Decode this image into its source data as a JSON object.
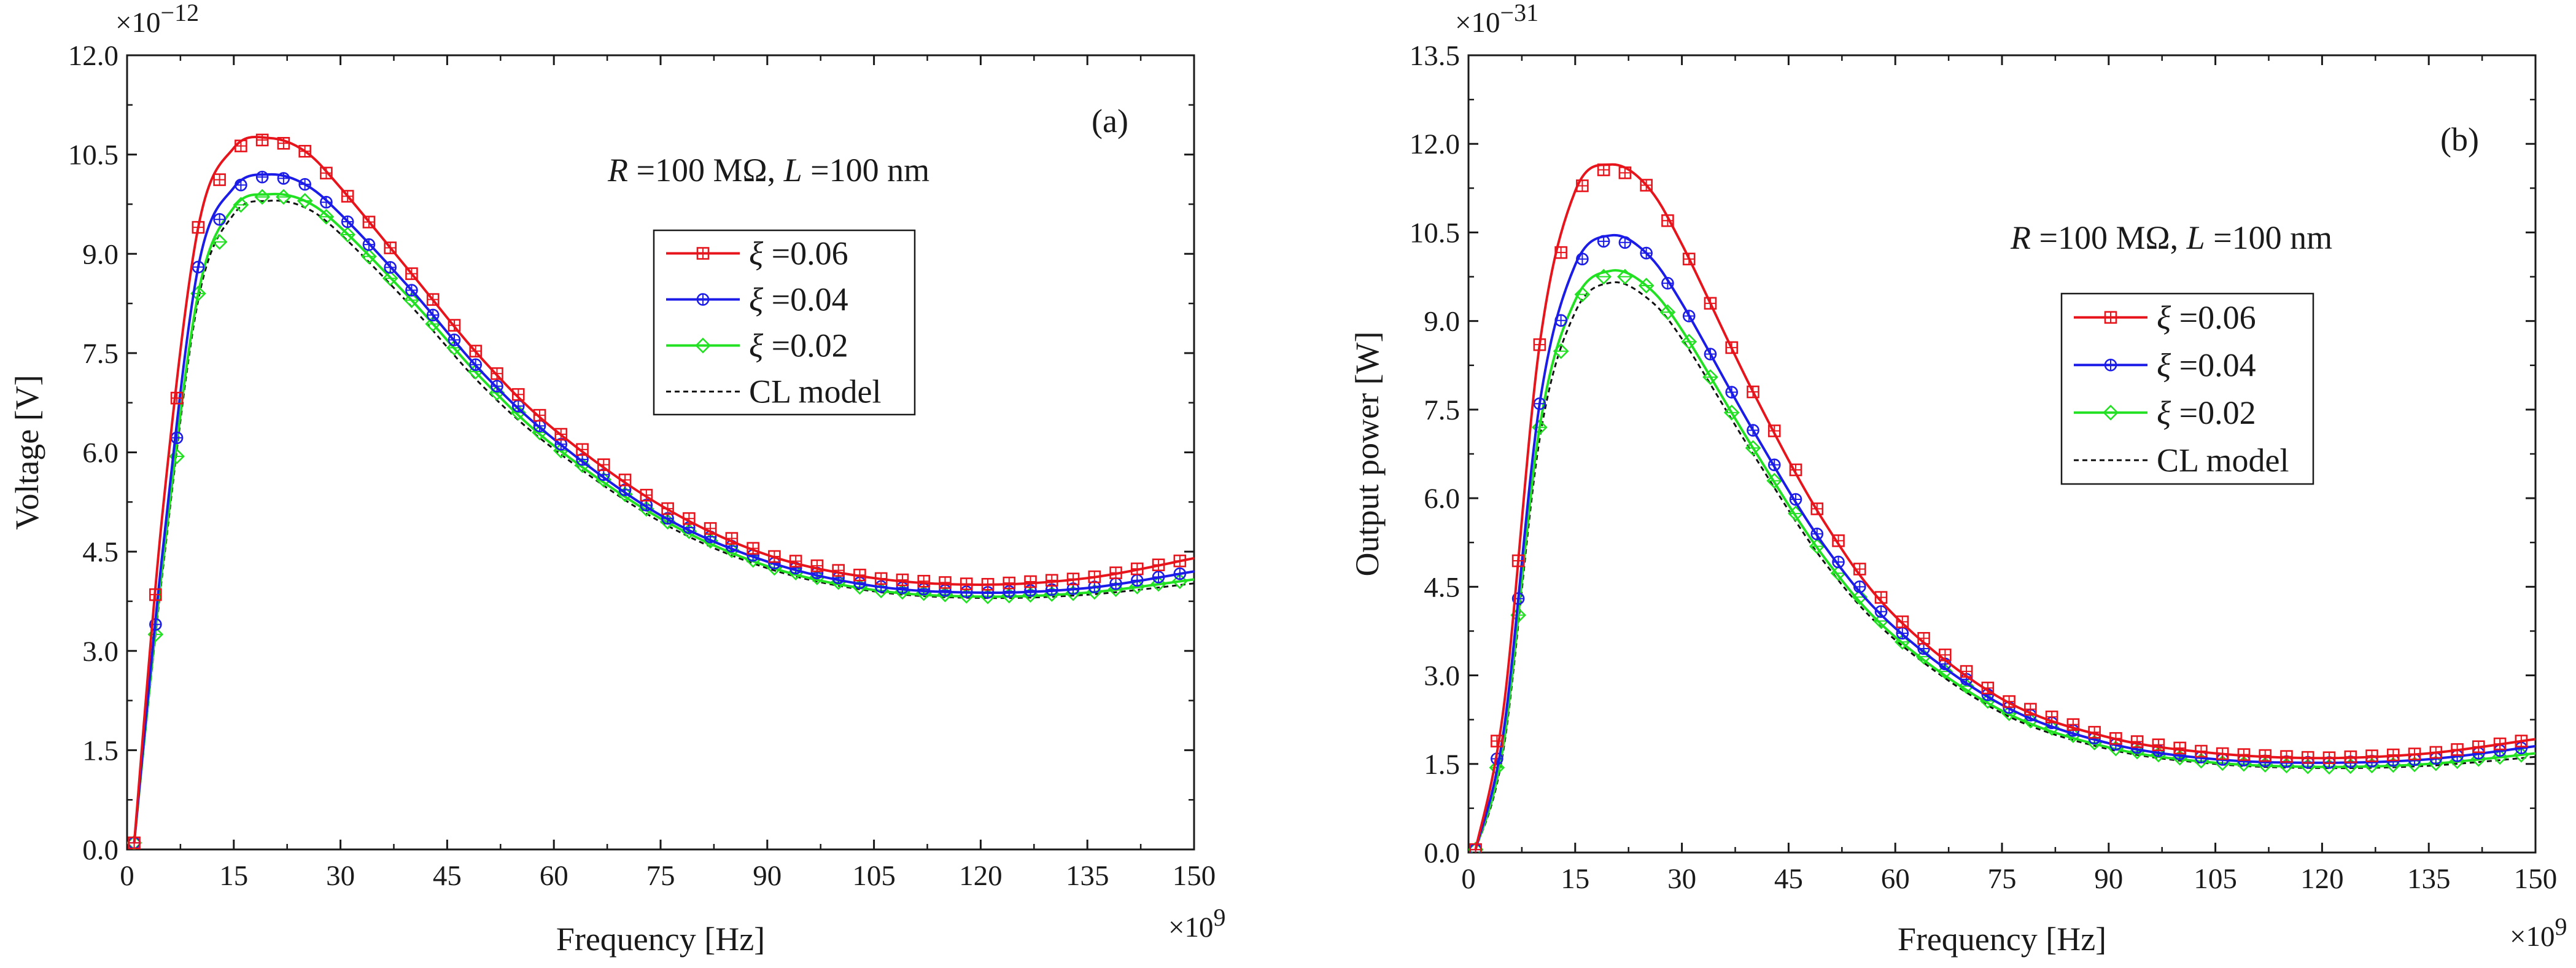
{
  "chart_data": [
    {
      "id": "a",
      "type": "line",
      "panel_label": "(a)",
      "annotation": {
        "R_var": "R",
        "R_text": " =100 MΩ, ",
        "L_var": "L",
        "L_text": " =100 nm"
      },
      "xlabel": "Frequency [Hz]",
      "ylabel": "Voltage [V]",
      "x_multiplier": "×10",
      "x_multiplier_exp": "9",
      "y_multiplier": "×10",
      "y_multiplier_exp": "−12",
      "xlim": [
        0,
        150
      ],
      "ylim": [
        0,
        12
      ],
      "x_ticks": [
        0,
        15,
        30,
        45,
        60,
        75,
        90,
        105,
        120,
        135,
        150
      ],
      "x_tick_labels": [
        "0",
        "15",
        "30",
        "45",
        "60",
        "75",
        "90",
        "105",
        "120",
        "135",
        "150"
      ],
      "y_ticks": [
        0,
        1.5,
        3,
        4.5,
        6,
        7.5,
        9,
        10.5,
        12
      ],
      "y_tick_labels": [
        "0.0",
        "1.5",
        "3.0",
        "4.5",
        "6.0",
        "7.5",
        "9.0",
        "10.5",
        "12.0"
      ],
      "series": [
        {
          "name_var": "ξ",
          "name_text": " =0.06",
          "color": "#e8141c",
          "marker": "square",
          "x": [
            1,
            5,
            10,
            15,
            20,
            25,
            30,
            40,
            50,
            60,
            75,
            90,
            105,
            120,
            135,
            150
          ],
          "y": [
            0.1,
            5.1,
            9.4,
            10.6,
            10.75,
            10.55,
            10.0,
            8.7,
            7.4,
            6.35,
            5.2,
            4.45,
            4.1,
            4.0,
            4.1,
            4.4
          ]
        },
        {
          "name_var": "ξ",
          "name_text": " =0.04",
          "color": "#1c1ce8",
          "marker": "circle",
          "x": [
            1,
            5,
            10,
            15,
            20,
            25,
            30,
            40,
            50,
            60,
            75,
            90,
            105,
            120,
            135,
            150
          ],
          "y": [
            0.1,
            4.5,
            8.8,
            10.0,
            10.2,
            10.05,
            9.6,
            8.45,
            7.2,
            6.2,
            5.05,
            4.35,
            3.98,
            3.88,
            3.95,
            4.2
          ]
        },
        {
          "name_var": "ξ",
          "name_text": " =0.02",
          "color": "#22e022",
          "marker": "diamond",
          "x": [
            1,
            5,
            10,
            15,
            20,
            25,
            30,
            40,
            50,
            60,
            75,
            90,
            105,
            120,
            135,
            150
          ],
          "y": [
            0.1,
            4.3,
            8.4,
            9.7,
            9.9,
            9.8,
            9.4,
            8.3,
            7.1,
            6.1,
            5.0,
            4.28,
            3.92,
            3.82,
            3.88,
            4.08
          ]
        },
        {
          "name_var": "",
          "name_text": "CL model",
          "color": "#111111",
          "marker": "none",
          "dashed": true,
          "x": [
            1,
            5,
            10,
            15,
            20,
            25,
            30,
            40,
            50,
            60,
            75,
            90,
            105,
            120,
            135,
            150
          ],
          "y": [
            0.1,
            4.2,
            8.3,
            9.6,
            9.8,
            9.7,
            9.3,
            8.2,
            7.0,
            6.05,
            4.95,
            4.25,
            3.9,
            3.8,
            3.85,
            4.02
          ]
        }
      ]
    },
    {
      "id": "b",
      "type": "line",
      "panel_label": "(b)",
      "annotation": {
        "R_var": "R",
        "R_text": " =100 MΩ, ",
        "L_var": "L",
        "L_text": " =100 nm"
      },
      "xlabel": "Frequency [Hz]",
      "ylabel": "Output power [W]",
      "x_multiplier": "×10",
      "x_multiplier_exp": "9",
      "y_multiplier": "×10",
      "y_multiplier_exp": "−31",
      "xlim": [
        0,
        150
      ],
      "ylim": [
        0,
        13.5
      ],
      "x_ticks": [
        0,
        15,
        30,
        45,
        60,
        75,
        90,
        105,
        120,
        135,
        150
      ],
      "x_tick_labels": [
        "0",
        "15",
        "30",
        "45",
        "60",
        "75",
        "90",
        "105",
        "120",
        "135",
        "150"
      ],
      "y_ticks": [
        0,
        1.5,
        3,
        4.5,
        6,
        7.5,
        9,
        10.5,
        12,
        13.5
      ],
      "y_tick_labels": [
        "0.0",
        "1.5",
        "3.0",
        "4.5",
        "6.0",
        "7.5",
        "9.0",
        "10.5",
        "12.0",
        "13.5"
      ],
      "series": [
        {
          "name_var": "ξ",
          "name_text": " =0.06",
          "color": "#e8141c",
          "marker": "square",
          "x": [
            1,
            5,
            10,
            15,
            20,
            25,
            30,
            40,
            50,
            60,
            75,
            90,
            105,
            120,
            135,
            150
          ],
          "y": [
            0.05,
            2.5,
            8.6,
            11.2,
            11.65,
            11.3,
            10.3,
            7.8,
            5.6,
            4.0,
            2.6,
            1.95,
            1.68,
            1.6,
            1.68,
            1.92
          ]
        },
        {
          "name_var": "ξ",
          "name_text": " =0.04",
          "color": "#1c1ce8",
          "marker": "circle",
          "x": [
            1,
            5,
            10,
            15,
            20,
            25,
            30,
            40,
            50,
            60,
            75,
            90,
            105,
            120,
            135,
            150
          ],
          "y": [
            0.05,
            2.1,
            7.6,
            9.95,
            10.45,
            10.15,
            9.3,
            7.15,
            5.2,
            3.8,
            2.5,
            1.85,
            1.58,
            1.52,
            1.58,
            1.8
          ]
        },
        {
          "name_var": "ξ",
          "name_text": " =0.02",
          "color": "#22e022",
          "marker": "diamond",
          "x": [
            1,
            5,
            10,
            15,
            20,
            25,
            30,
            40,
            50,
            60,
            75,
            90,
            105,
            120,
            135,
            150
          ],
          "y": [
            0.05,
            1.9,
            7.2,
            9.35,
            9.85,
            9.6,
            8.85,
            6.85,
            5.0,
            3.65,
            2.4,
            1.78,
            1.52,
            1.45,
            1.5,
            1.68
          ]
        },
        {
          "name_var": "",
          "name_text": "CL model",
          "color": "#111111",
          "marker": "none",
          "dashed": true,
          "x": [
            1,
            5,
            10,
            15,
            20,
            25,
            30,
            40,
            50,
            60,
            75,
            90,
            105,
            120,
            135,
            150
          ],
          "y": [
            0.05,
            1.8,
            7.0,
            9.15,
            9.65,
            9.4,
            8.7,
            6.75,
            4.92,
            3.6,
            2.36,
            1.75,
            1.5,
            1.43,
            1.47,
            1.62
          ]
        }
      ]
    }
  ]
}
